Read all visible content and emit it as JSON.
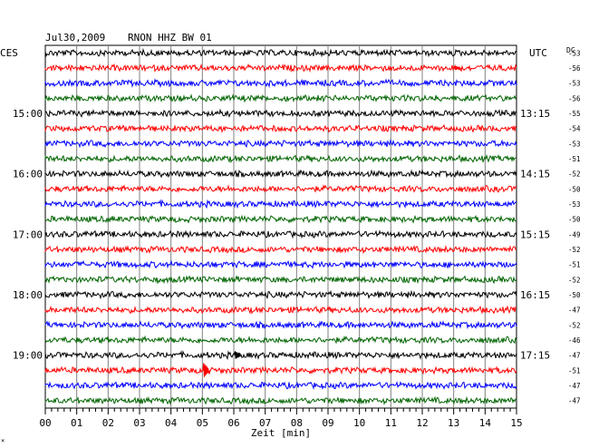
{
  "header": {
    "date": "Jul30,2009",
    "station": "RNON HHZ BW 01",
    "left_timezone": "CES",
    "right_timezone": "UTC",
    "dc_label": "DC"
  },
  "footer": {
    "xlabel": "Zeit [min]",
    "corner_mark": "×"
  },
  "colors": {
    "trace_cycle": [
      "#000000",
      "#ff0000",
      "#0000ff",
      "#006400"
    ],
    "grid": "#808080",
    "frame": "#000000"
  },
  "chart_data": {
    "type": "line",
    "description_of_x": "minutes within each 15-minute row",
    "x_ticks": [
      "00",
      "01",
      "02",
      "03",
      "04",
      "05",
      "06",
      "07",
      "08",
      "09",
      "10",
      "11",
      "12",
      "13",
      "14",
      "15"
    ],
    "xlim": [
      0,
      15
    ],
    "rows": 24,
    "left_hour_labels": [
      {
        "row": 4,
        "text": "15:00"
      },
      {
        "row": 8,
        "text": "16:00"
      },
      {
        "row": 12,
        "text": "17:00"
      },
      {
        "row": 16,
        "text": "18:00"
      },
      {
        "row": 20,
        "text": "19:00"
      }
    ],
    "right_time_labels": [
      {
        "row": 4,
        "text": "13:15"
      },
      {
        "row": 8,
        "text": "14:15"
      },
      {
        "row": 12,
        "text": "15:15"
      },
      {
        "row": 16,
        "text": "16:15"
      },
      {
        "row": 20,
        "text": "17:15"
      }
    ],
    "dc_offsets": [
      -53,
      -56,
      -53,
      -56,
      -55,
      -54,
      -53,
      -51,
      -52,
      -50,
      -53,
      -50,
      -49,
      -52,
      -51,
      -52,
      -50,
      -47,
      -52,
      -46,
      -47,
      -51,
      -47,
      -47
    ],
    "events": [
      {
        "row": 21,
        "minute": 5.1,
        "amplitude": 1.0
      },
      {
        "row": 20,
        "minute": 6.1,
        "amplitude": 0.55
      },
      {
        "row": 1,
        "minute": 13.1,
        "amplitude": 0.3
      }
    ]
  }
}
